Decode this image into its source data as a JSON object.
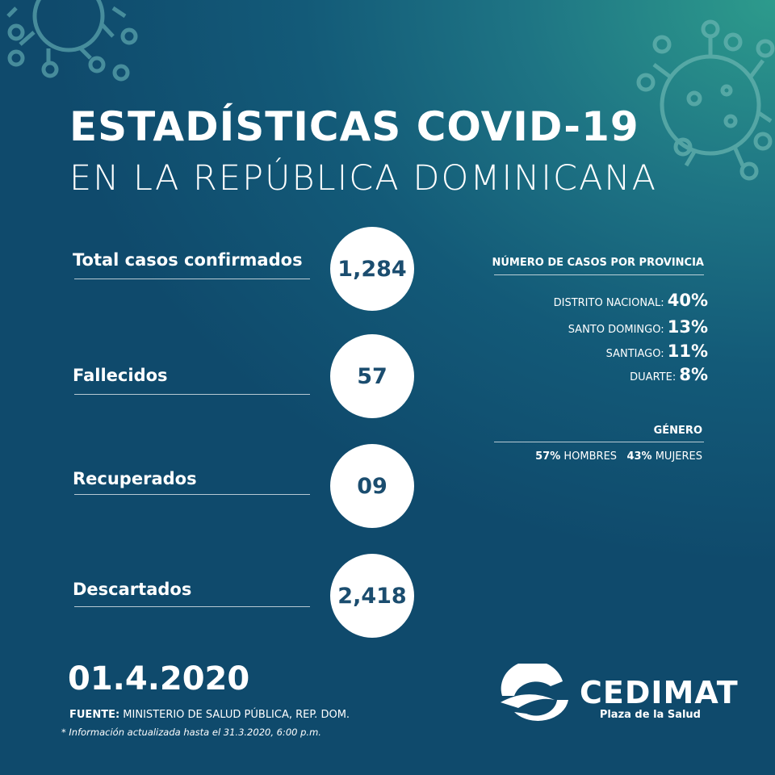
{
  "header": {
    "title": "ESTADÍSTICAS COVID-19",
    "subtitle": "EN LA REPÚBLICA DOMINICANA"
  },
  "stats": [
    {
      "label": "Total casos confirmados",
      "value": "1,284"
    },
    {
      "label": "Fallecidos",
      "value": "57"
    },
    {
      "label": "Recuperados",
      "value": "09"
    },
    {
      "label": "Descartados",
      "value": "2,418"
    }
  ],
  "provinces": {
    "title": "NÚMERO DE CASOS POR PROVINCIA",
    "items": [
      {
        "name": "DISTRITO NACIONAL:",
        "value": "40%"
      },
      {
        "name": "SANTO DOMINGO:",
        "value": "13%"
      },
      {
        "name": "SANTIAGO:",
        "value": "11%"
      },
      {
        "name": "DUARTE:",
        "value": "8%"
      }
    ]
  },
  "gender": {
    "title": "GÉNERO",
    "items": [
      {
        "value": "57%",
        "label": "HOMBRES"
      },
      {
        "value": "43%",
        "label": "MUJERES"
      }
    ]
  },
  "date": "01.4.2020",
  "source": {
    "label": "FUENTE:",
    "text": "MINISTERIO DE SALUD PÚBLICA, REP. DOM."
  },
  "note": "* Información actualizada hasta el 31.3.2020, 6:00 p.m.",
  "logo": {
    "name": "CEDIMAT",
    "tagline": "Plaza de la Salud"
  }
}
